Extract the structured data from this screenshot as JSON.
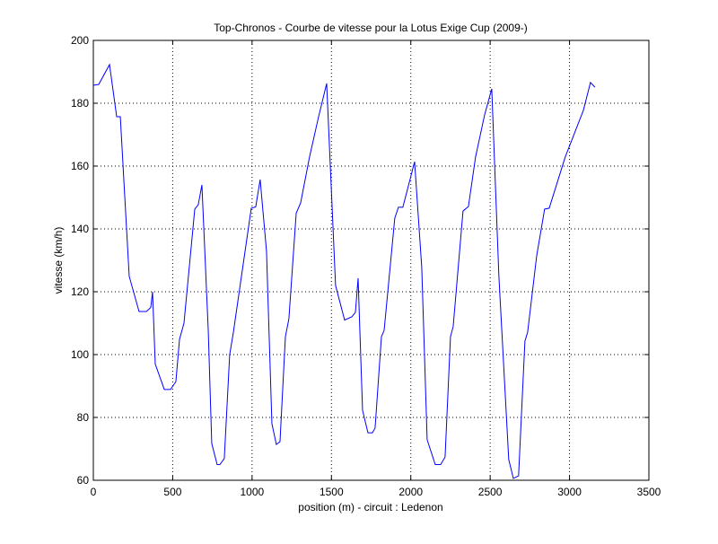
{
  "chart_data": {
    "type": "line",
    "title": "Top-Chronos - Courbe de vitesse pour la Lotus Exige Cup (2009-)",
    "x_label": "position (m) - circuit : Ledenon",
    "y_label": "vitesse (km/h)",
    "x": [
      0,
      34,
      102,
      147,
      170,
      226,
      288,
      334,
      362,
      373,
      390,
      447,
      486,
      520,
      543,
      571,
      639,
      661,
      684,
      724,
      746,
      780,
      797,
      825,
      859,
      882,
      939,
      995,
      1023,
      1051,
      1091,
      1125,
      1153,
      1176,
      1210,
      1232,
      1278,
      1306,
      1362,
      1419,
      1470,
      1526,
      1583,
      1628,
      1651,
      1668,
      1696,
      1730,
      1758,
      1775,
      1815,
      1832,
      1899,
      1922,
      1950,
      2024,
      2069,
      2103,
      2154,
      2188,
      2216,
      2250,
      2267,
      2329,
      2363,
      2408,
      2465,
      2510,
      2555,
      2617,
      2646,
      2679,
      2719,
      2736,
      2793,
      2843,
      2872,
      2973,
      3087,
      3132,
      3160
    ],
    "series": [
      {
        "color": "#0000ff",
        "values": [
          185.7,
          186,
          192.3,
          175.7,
          175.7,
          124.9,
          113.7,
          113.7,
          115,
          120,
          97,
          88.9,
          88.9,
          91.4,
          104.9,
          110,
          146.3,
          147.7,
          154,
          107.7,
          71.7,
          65,
          65,
          66.9,
          100,
          107,
          127,
          146.6,
          147,
          155.7,
          132.9,
          78,
          71.4,
          72.3,
          105.7,
          111.4,
          145,
          148.3,
          162.9,
          175.7,
          186.3,
          122,
          111,
          112,
          113.4,
          124.3,
          82.3,
          75.1,
          75.1,
          76.6,
          105.7,
          107.7,
          143.4,
          146.9,
          146.9,
          161.4,
          127.7,
          72.9,
          65,
          65,
          67.4,
          105.7,
          108.9,
          145.7,
          147.1,
          162.9,
          176.3,
          184.6,
          124.9,
          66.6,
          60.6,
          61.4,
          104.3,
          107.1,
          131.4,
          146.3,
          146.6,
          162.9,
          177.7,
          186.6,
          185.1
        ]
      }
    ],
    "xlim": [
      0,
      3500
    ],
    "xticks": [
      0,
      500,
      1000,
      1500,
      2000,
      2500,
      3000,
      3500
    ],
    "ylim": [
      60,
      200
    ],
    "yticks": [
      60,
      80,
      100,
      120,
      140,
      160,
      180,
      200
    ],
    "grid": true
  }
}
